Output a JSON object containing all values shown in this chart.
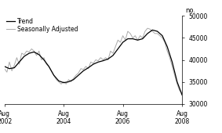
{
  "title": "",
  "ylabel": "no.",
  "ylim": [
    30000,
    50000
  ],
  "yticks": [
    30000,
    35000,
    40000,
    45000,
    50000
  ],
  "xlim_start": 2002.583,
  "xlim_end": 2008.583,
  "xtick_positions": [
    2002.583,
    2004.583,
    2006.583,
    2008.583
  ],
  "xtick_labels": [
    "Aug\n2002",
    "Aug\n2004",
    "Aug\n2006",
    "Aug\n2008"
  ],
  "legend_entries": [
    "Trend",
    "Seasonally Adjusted"
  ],
  "trend_color": "#000000",
  "seasonal_color": "#aaaaaa",
  "trend_linewidth": 0.9,
  "seasonal_linewidth": 0.7,
  "background_color": "#ffffff",
  "trend_data": [
    [
      2002.583,
      38500
    ],
    [
      2002.75,
      38000
    ],
    [
      2002.917,
      38200
    ],
    [
      2003.083,
      39500
    ],
    [
      2003.25,
      40800
    ],
    [
      2003.417,
      41500
    ],
    [
      2003.583,
      41800
    ],
    [
      2003.75,
      41200
    ],
    [
      2003.917,
      40000
    ],
    [
      2004.083,
      38500
    ],
    [
      2004.25,
      36500
    ],
    [
      2004.417,
      35200
    ],
    [
      2004.583,
      34800
    ],
    [
      2004.75,
      35000
    ],
    [
      2004.917,
      35500
    ],
    [
      2005.083,
      36500
    ],
    [
      2005.25,
      37500
    ],
    [
      2005.417,
      38200
    ],
    [
      2005.583,
      39000
    ],
    [
      2005.75,
      39500
    ],
    [
      2005.917,
      39800
    ],
    [
      2006.083,
      40200
    ],
    [
      2006.25,
      41000
    ],
    [
      2006.417,
      42500
    ],
    [
      2006.583,
      44000
    ],
    [
      2006.75,
      44800
    ],
    [
      2006.917,
      44800
    ],
    [
      2007.083,
      44500
    ],
    [
      2007.25,
      44800
    ],
    [
      2007.417,
      46000
    ],
    [
      2007.583,
      46800
    ],
    [
      2007.75,
      46500
    ],
    [
      2007.917,
      45500
    ],
    [
      2008.083,
      43000
    ],
    [
      2008.25,
      39500
    ],
    [
      2008.417,
      35000
    ],
    [
      2008.583,
      32000
    ]
  ],
  "seasonal_data": [
    [
      2002.583,
      38000
    ],
    [
      2002.667,
      37200
    ],
    [
      2002.75,
      39500
    ],
    [
      2002.833,
      37500
    ],
    [
      2002.917,
      38800
    ],
    [
      2003.0,
      40500
    ],
    [
      2003.083,
      39000
    ],
    [
      2003.167,
      41500
    ],
    [
      2003.25,
      41200
    ],
    [
      2003.333,
      42000
    ],
    [
      2003.417,
      41800
    ],
    [
      2003.5,
      42500
    ],
    [
      2003.583,
      42000
    ],
    [
      2003.667,
      41000
    ],
    [
      2003.75,
      42000
    ],
    [
      2003.833,
      40000
    ],
    [
      2003.917,
      40500
    ],
    [
      2004.0,
      39000
    ],
    [
      2004.083,
      38500
    ],
    [
      2004.167,
      37500
    ],
    [
      2004.25,
      36500
    ],
    [
      2004.333,
      35500
    ],
    [
      2004.417,
      35000
    ],
    [
      2004.5,
      34500
    ],
    [
      2004.583,
      35000
    ],
    [
      2004.667,
      34500
    ],
    [
      2004.75,
      35500
    ],
    [
      2004.833,
      35000
    ],
    [
      2004.917,
      35800
    ],
    [
      2005.0,
      36500
    ],
    [
      2005.083,
      37000
    ],
    [
      2005.167,
      38000
    ],
    [
      2005.25,
      37800
    ],
    [
      2005.333,
      38500
    ],
    [
      2005.417,
      38000
    ],
    [
      2005.5,
      39500
    ],
    [
      2005.583,
      39200
    ],
    [
      2005.667,
      40000
    ],
    [
      2005.75,
      39800
    ],
    [
      2005.833,
      40500
    ],
    [
      2005.917,
      40000
    ],
    [
      2006.0,
      40500
    ],
    [
      2006.083,
      40000
    ],
    [
      2006.167,
      42000
    ],
    [
      2006.25,
      41500
    ],
    [
      2006.333,
      43000
    ],
    [
      2006.417,
      44500
    ],
    [
      2006.5,
      44000
    ],
    [
      2006.583,
      45500
    ],
    [
      2006.667,
      44500
    ],
    [
      2006.75,
      46500
    ],
    [
      2006.833,
      46000
    ],
    [
      2006.917,
      45000
    ],
    [
      2007.0,
      45500
    ],
    [
      2007.083,
      44500
    ],
    [
      2007.167,
      45500
    ],
    [
      2007.25,
      45000
    ],
    [
      2007.333,
      46500
    ],
    [
      2007.417,
      47200
    ],
    [
      2007.5,
      47000
    ],
    [
      2007.583,
      46500
    ],
    [
      2007.667,
      46000
    ],
    [
      2007.75,
      46000
    ],
    [
      2007.833,
      45500
    ],
    [
      2007.917,
      45000
    ],
    [
      2008.0,
      44000
    ],
    [
      2008.083,
      42000
    ],
    [
      2008.167,
      40500
    ],
    [
      2008.25,
      38500
    ],
    [
      2008.333,
      36500
    ],
    [
      2008.417,
      34500
    ],
    [
      2008.5,
      33000
    ],
    [
      2008.583,
      32500
    ]
  ]
}
